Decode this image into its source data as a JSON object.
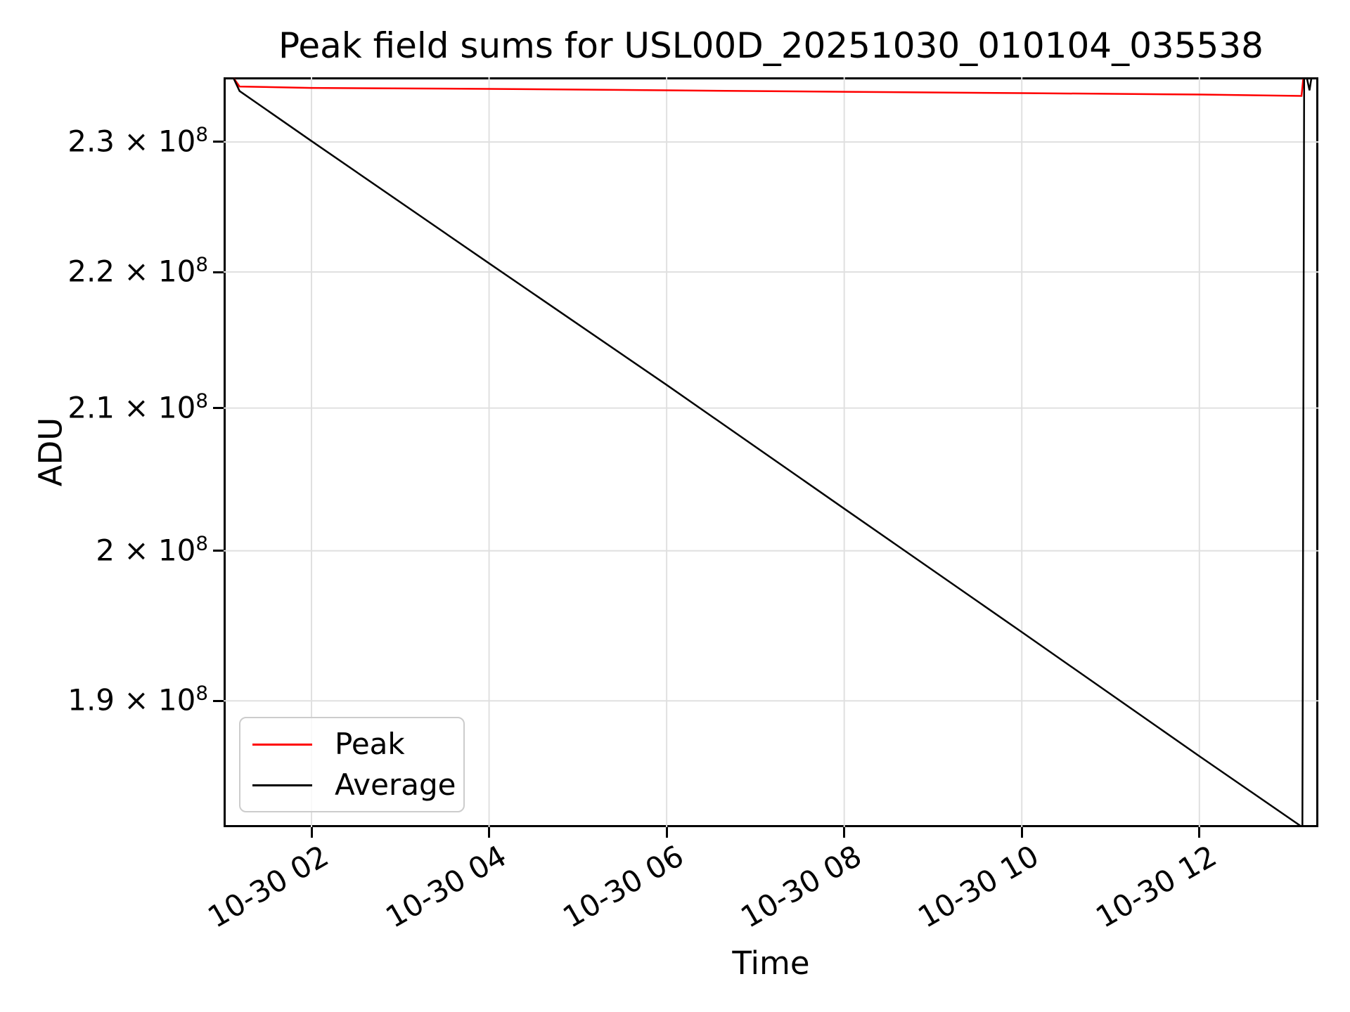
{
  "title": "Peak field sums for USL00D_20251030_010104_035538",
  "axes": {
    "xlabel": "Time",
    "ylabel": "ADU",
    "x_ticks": [
      {
        "hour": 2,
        "label": "10-30 02"
      },
      {
        "hour": 4,
        "label": "10-30 04"
      },
      {
        "hour": 6,
        "label": "10-30 06"
      },
      {
        "hour": 8,
        "label": "10-30 08"
      },
      {
        "hour": 10,
        "label": "10-30 10"
      },
      {
        "hour": 12,
        "label": "10-30 12"
      }
    ],
    "y_ticks": [
      {
        "value": 230000000,
        "base": "2.3 × 10",
        "exp": "8"
      },
      {
        "value": 220000000,
        "base": "2.2 × 10",
        "exp": "8"
      },
      {
        "value": 210000000,
        "base": "2.1 × 10",
        "exp": "8"
      },
      {
        "value": 200000000,
        "base": "2 × 10",
        "exp": "8"
      },
      {
        "value": 190000000,
        "base": "1.9 × 10",
        "exp": "8"
      }
    ]
  },
  "legend": {
    "items": [
      {
        "label": "Peak",
        "color": "#ff0000"
      },
      {
        "label": "Average",
        "color": "#000000"
      }
    ]
  },
  "chart_data": {
    "type": "line",
    "title": "Peak field sums for USL00D_20251030_010104_035538",
    "xlabel": "Time",
    "ylabel": "ADU",
    "yscale": "log",
    "grid": true,
    "legend_position": "lower left",
    "x_axis_unit": "hours on 10-30",
    "xlim_hours": [
      1.01,
      13.34
    ],
    "ylim": [
      181970000,
      235140000
    ],
    "x_tick_hours": [
      2,
      4,
      6,
      8,
      10,
      12
    ],
    "x_tick_labels": [
      "10-30 02",
      "10-30 04",
      "10-30 06",
      "10-30 08",
      "10-30 10",
      "10-30 12"
    ],
    "y_tick_values": [
      230000000,
      220000000,
      210000000,
      200000000,
      190000000
    ],
    "series": [
      {
        "name": "Peak",
        "color": "#ff0000",
        "points": [
          [
            1.12,
            235100000
          ],
          [
            1.19,
            234400000
          ],
          [
            2.0,
            234290000
          ],
          [
            4.0,
            234210000
          ],
          [
            6.0,
            234100000
          ],
          [
            8.0,
            233980000
          ],
          [
            10.0,
            233870000
          ],
          [
            12.0,
            233760000
          ],
          [
            13.15,
            233650000
          ],
          [
            13.17,
            235000000
          ]
        ]
      },
      {
        "name": "Average",
        "color": "#000000",
        "points": [
          [
            1.12,
            235100000
          ],
          [
            1.19,
            234040000
          ],
          [
            2.0,
            230070000
          ],
          [
            4.0,
            220650000
          ],
          [
            6.0,
            211670000
          ],
          [
            8.0,
            202900000
          ],
          [
            10.0,
            194520000
          ],
          [
            12.0,
            186440000
          ],
          [
            13.16,
            181970000
          ],
          [
            13.18,
            235100000
          ],
          [
            13.21,
            235100000
          ],
          [
            13.24,
            234100000
          ],
          [
            13.26,
            235000000
          ]
        ]
      }
    ]
  }
}
